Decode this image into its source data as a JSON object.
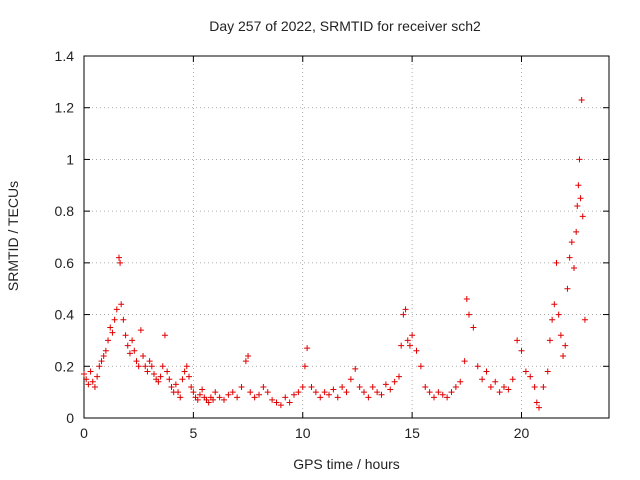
{
  "chart_data": {
    "type": "scatter",
    "title": "Day 257 of 2022, SRMTID for receiver sch2",
    "xlabel": "GPS time / hours",
    "ylabel": "SRMTID / TECUs",
    "xlim": [
      0,
      24
    ],
    "ylim": [
      0,
      1.4
    ],
    "xticks": [
      0,
      5,
      10,
      15,
      20
    ],
    "yticks": [
      0,
      0.2,
      0.4,
      0.6,
      0.8,
      1,
      1.2,
      1.4
    ],
    "xtick_labels": [
      "0",
      "5",
      "10",
      "15",
      "20"
    ],
    "ytick_labels": [
      "0",
      "0.2",
      "0.4",
      "0.6",
      "0.8",
      "1",
      "1.2",
      "1.4"
    ],
    "grid": true,
    "marker": "+",
    "color": "#e00000",
    "series": [
      {
        "name": "SRMTID",
        "x": [
          0.0,
          0.1,
          0.2,
          0.3,
          0.4,
          0.5,
          0.6,
          0.7,
          0.8,
          0.9,
          1.0,
          1.1,
          1.2,
          1.3,
          1.4,
          1.5,
          1.6,
          1.65,
          1.7,
          1.8,
          1.9,
          2.0,
          2.1,
          2.2,
          2.3,
          2.4,
          2.5,
          2.6,
          2.7,
          2.8,
          2.9,
          3.0,
          3.1,
          3.2,
          3.3,
          3.4,
          3.5,
          3.6,
          3.7,
          3.8,
          3.9,
          4.0,
          4.1,
          4.2,
          4.3,
          4.4,
          4.5,
          4.6,
          4.7,
          4.8,
          4.9,
          5.0,
          5.1,
          5.2,
          5.3,
          5.4,
          5.5,
          5.6,
          5.7,
          5.8,
          5.9,
          6.0,
          6.2,
          6.4,
          6.6,
          6.8,
          7.0,
          7.2,
          7.4,
          7.5,
          7.6,
          7.8,
          8.0,
          8.2,
          8.4,
          8.6,
          8.8,
          9.0,
          9.2,
          9.4,
          9.6,
          9.8,
          10.0,
          10.1,
          10.2,
          10.4,
          10.6,
          10.8,
          11.0,
          11.2,
          11.4,
          11.6,
          11.8,
          12.0,
          12.2,
          12.4,
          12.6,
          12.8,
          13.0,
          13.2,
          13.4,
          13.6,
          13.8,
          14.0,
          14.2,
          14.4,
          14.5,
          14.6,
          14.7,
          14.8,
          14.9,
          15.0,
          15.2,
          15.4,
          15.6,
          15.8,
          16.0,
          16.2,
          16.4,
          16.6,
          16.8,
          17.0,
          17.2,
          17.4,
          17.5,
          17.6,
          17.8,
          18.0,
          18.2,
          18.4,
          18.6,
          18.8,
          19.0,
          19.2,
          19.4,
          19.6,
          19.8,
          20.0,
          20.2,
          20.4,
          20.6,
          20.7,
          20.8,
          21.0,
          21.2,
          21.3,
          21.4,
          21.5,
          21.6,
          21.7,
          21.8,
          21.9,
          22.0,
          22.1,
          22.2,
          22.3,
          22.4,
          22.5,
          22.55,
          22.6,
          22.65,
          22.7,
          22.75,
          22.8,
          22.9
        ],
        "y": [
          0.17,
          0.15,
          0.13,
          0.18,
          0.14,
          0.12,
          0.16,
          0.2,
          0.22,
          0.24,
          0.26,
          0.3,
          0.35,
          0.33,
          0.38,
          0.42,
          0.62,
          0.6,
          0.44,
          0.38,
          0.32,
          0.28,
          0.25,
          0.3,
          0.26,
          0.22,
          0.2,
          0.34,
          0.24,
          0.2,
          0.18,
          0.22,
          0.2,
          0.17,
          0.15,
          0.14,
          0.16,
          0.2,
          0.32,
          0.18,
          0.15,
          0.12,
          0.1,
          0.13,
          0.1,
          0.08,
          0.15,
          0.18,
          0.2,
          0.16,
          0.12,
          0.1,
          0.08,
          0.07,
          0.09,
          0.11,
          0.08,
          0.07,
          0.06,
          0.08,
          0.07,
          0.1,
          0.08,
          0.07,
          0.09,
          0.1,
          0.08,
          0.12,
          0.22,
          0.24,
          0.1,
          0.08,
          0.09,
          0.12,
          0.1,
          0.07,
          0.06,
          0.05,
          0.08,
          0.06,
          0.09,
          0.1,
          0.12,
          0.2,
          0.27,
          0.12,
          0.1,
          0.08,
          0.1,
          0.09,
          0.11,
          0.08,
          0.12,
          0.1,
          0.15,
          0.19,
          0.12,
          0.1,
          0.08,
          0.12,
          0.1,
          0.09,
          0.13,
          0.11,
          0.14,
          0.16,
          0.28,
          0.4,
          0.42,
          0.3,
          0.28,
          0.32,
          0.26,
          0.2,
          0.12,
          0.1,
          0.08,
          0.1,
          0.09,
          0.08,
          0.1,
          0.12,
          0.14,
          0.22,
          0.46,
          0.4,
          0.35,
          0.2,
          0.15,
          0.18,
          0.12,
          0.14,
          0.1,
          0.12,
          0.11,
          0.15,
          0.3,
          0.26,
          0.18,
          0.16,
          0.12,
          0.06,
          0.04,
          0.12,
          0.18,
          0.3,
          0.38,
          0.44,
          0.6,
          0.4,
          0.32,
          0.24,
          0.28,
          0.5,
          0.62,
          0.68,
          0.58,
          0.72,
          0.82,
          0.9,
          1.0,
          0.85,
          1.23,
          0.78,
          0.38
        ]
      }
    ]
  }
}
